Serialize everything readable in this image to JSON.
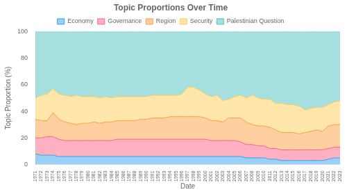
{
  "chart_data": {
    "type": "area",
    "title": "Topic Proportions Over Time",
    "xlabel": "Date",
    "ylabel": "Topic Proportion (%)",
    "x": [
      1971,
      1972,
      1973,
      1974,
      1975,
      1976,
      1977,
      1978,
      1979,
      1980,
      1981,
      1982,
      1983,
      1984,
      1985,
      1986,
      1987,
      1988,
      1989,
      1990,
      1991,
      1992,
      1993,
      1994,
      1995,
      1996,
      1997,
      1998,
      1999,
      2000,
      2001,
      2002,
      2003,
      2004,
      2005,
      2006,
      2007,
      2008,
      2009,
      2010,
      2011,
      2012,
      2013,
      2014,
      2015,
      2016,
      2017,
      2018,
      2019,
      2020,
      2021,
      2022,
      2023
    ],
    "series": [
      {
        "name": "Economy",
        "values": [
          8,
          7,
          7,
          7,
          6,
          6,
          6,
          6,
          6,
          6,
          6,
          6,
          6,
          6,
          6,
          6,
          6,
          6,
          6,
          6,
          6,
          6,
          6,
          6,
          6,
          6,
          6,
          6,
          6,
          6,
          6,
          6,
          6,
          6,
          6,
          6,
          5,
          5,
          5,
          5,
          4,
          4,
          3,
          3,
          3,
          3,
          3,
          3,
          3,
          3,
          4,
          5,
          5
        ]
      },
      {
        "name": "Governance",
        "values": [
          12,
          13,
          14,
          14,
          13,
          12,
          12,
          12,
          12,
          12,
          12,
          12,
          12,
          12,
          13,
          13,
          13,
          13,
          13,
          13,
          13,
          13,
          13,
          13,
          13,
          13,
          13,
          13,
          13,
          13,
          12,
          12,
          12,
          12,
          12,
          11,
          10,
          10,
          9,
          9,
          8,
          8,
          8,
          8,
          8,
          8,
          8,
          8,
          8,
          8,
          8,
          8,
          8
        ]
      },
      {
        "name": "Region",
        "values": [
          14,
          13,
          12,
          18,
          15,
          14,
          13,
          12,
          13,
          13,
          14,
          13,
          14,
          14,
          14,
          14,
          14,
          14,
          15,
          15,
          16,
          16,
          16,
          17,
          17,
          17,
          17,
          17,
          17,
          16,
          15,
          15,
          14,
          17,
          17,
          18,
          17,
          15,
          15,
          15,
          16,
          14,
          13,
          13,
          13,
          12,
          13,
          14,
          15,
          14,
          17,
          17,
          17
        ]
      },
      {
        "name": "Security",
        "values": [
          16,
          19,
          20,
          18,
          19,
          20,
          20,
          22,
          20,
          20,
          19,
          19,
          19,
          18,
          18,
          18,
          18,
          18,
          17,
          17,
          17,
          17,
          17,
          16,
          16,
          17,
          22,
          22,
          20,
          18,
          18,
          19,
          16,
          14,
          16,
          17,
          18,
          22,
          21,
          20,
          21,
          20,
          22,
          21,
          21,
          21,
          17,
          17,
          17,
          18,
          16,
          17,
          18
        ]
      },
      {
        "name": "Palestinian Question",
        "values": [
          50,
          48,
          47,
          43,
          47,
          48,
          49,
          48,
          49,
          49,
          49,
          50,
          49,
          50,
          49,
          49,
          49,
          49,
          49,
          49,
          48,
          48,
          48,
          48,
          48,
          47,
          42,
          42,
          44,
          47,
          49,
          48,
          52,
          51,
          49,
          48,
          50,
          48,
          50,
          51,
          51,
          54,
          54,
          55,
          55,
          56,
          59,
          58,
          57,
          57,
          55,
          53,
          52
        ]
      }
    ],
    "xlim": [
      1971,
      2023
    ],
    "xticks": [
      1971,
      1972,
      1973,
      1974,
      1975,
      1976,
      1977,
      1978,
      1979,
      1980,
      1981,
      1982,
      1983,
      1984,
      1985,
      1986,
      1987,
      1988,
      1989,
      1990,
      1991,
      1992,
      1993,
      1994,
      1995,
      1996,
      1997,
      1998,
      1999,
      2000,
      2001,
      2002,
      2003,
      2004,
      2005,
      2006,
      2007,
      2008,
      2009,
      2010,
      2011,
      2012,
      2013,
      2014,
      2015,
      2016,
      2017,
      2018,
      2019,
      2020,
      2021,
      2022,
      2023
    ],
    "ylim": [
      0,
      100
    ],
    "yticks": [
      0,
      20,
      40,
      60,
      80,
      100
    ],
    "stacked": true,
    "grid": false,
    "legend": "top"
  }
}
